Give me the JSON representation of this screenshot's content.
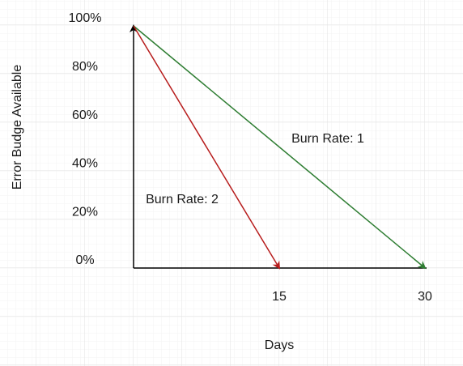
{
  "chart_data": {
    "type": "line",
    "y_label": "Error Budge Available",
    "x_label": "Days",
    "xlim": [
      0,
      30
    ],
    "xticks": [
      15,
      30
    ],
    "ylim": [
      0,
      100
    ],
    "yticks": [
      {
        "value": 0,
        "label": "0%"
      },
      {
        "value": 20,
        "label": "20%"
      },
      {
        "value": 40,
        "label": "40%"
      },
      {
        "value": 60,
        "label": "60%"
      },
      {
        "value": 80,
        "label": "80%"
      },
      {
        "value": 100,
        "label": "100%"
      }
    ],
    "series": [
      {
        "name": "Burn Rate: 1",
        "color": "#2e7d32",
        "x": [
          0,
          30
        ],
        "values": [
          100,
          0
        ]
      },
      {
        "name": "Burn Rate: 2",
        "color": "#b71c1c",
        "x": [
          0,
          15
        ],
        "values": [
          100,
          0
        ]
      }
    ]
  }
}
